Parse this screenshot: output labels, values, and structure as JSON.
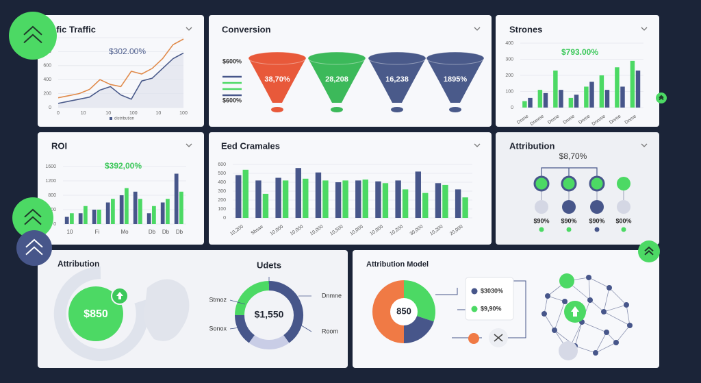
{
  "chart_data": [
    {
      "type": "line",
      "title": "afic Traffic",
      "annotation": "$302.00%",
      "legend": "distribution",
      "x": [
        0,
        1,
        2,
        3,
        4,
        5,
        6,
        7,
        8,
        9,
        10,
        11,
        12
      ],
      "xlim": [
        0,
        12
      ],
      "xticks": [
        {
          "value": 0,
          "label": "0"
        },
        {
          "value": 2.4,
          "label": "10"
        },
        {
          "value": 4.8,
          "label": "10"
        },
        {
          "value": 7.2,
          "label": "100"
        },
        {
          "value": 9.6,
          "label": "10"
        },
        {
          "value": 12,
          "label": "100"
        }
      ],
      "series": [
        {
          "color": "#e08a4a",
          "values": [
            140,
            170,
            200,
            260,
            400,
            330,
            300,
            520,
            480,
            560,
            700,
            900,
            980
          ]
        },
        {
          "color": "#4a5a8a",
          "values": [
            60,
            90,
            120,
            150,
            250,
            300,
            180,
            120,
            380,
            420,
            560,
            700,
            780
          ]
        }
      ],
      "ylim": [
        0,
        1000
      ],
      "yticks": [
        0,
        200,
        400,
        600,
        800,
        1000
      ]
    },
    {
      "type": "funnel",
      "title": "Conversion",
      "legend_labels": [
        "$600%",
        "$600%"
      ],
      "labels": [
        "38,70%",
        "28,208",
        "16,238",
        "1895%"
      ],
      "colors": [
        "#e8593a",
        "#3cb95a",
        "#4a5a8a",
        "#4a5a8a"
      ]
    },
    {
      "type": "bar",
      "title": "Strones",
      "annotation": "$793.00%",
      "categories": [
        "Dnme",
        "Dnnme",
        "Dnme",
        "Dnme",
        "Dnme",
        "Dnnme",
        "Dnme",
        "Dnme"
      ],
      "series": [
        {
          "color": "#4cd964",
          "values": [
            40,
            110,
            230,
            60,
            130,
            200,
            250,
            290
          ]
        },
        {
          "color": "#47568a",
          "values": [
            60,
            90,
            110,
            80,
            160,
            110,
            130,
            230
          ]
        }
      ],
      "ylim": [
        0,
        400
      ],
      "yticks": [
        0,
        100,
        200,
        300,
        400
      ]
    },
    {
      "type": "bar",
      "title": "ROI",
      "annotation": "$392,00%",
      "categories": [
        "10",
        null,
        "Fi",
        null,
        "Mo",
        null,
        "Db",
        "Db",
        "Db"
      ],
      "series": [
        {
          "color": "#47568a",
          "values": [
            200,
            300,
            400,
            600,
            800,
            900,
            300,
            600,
            1400
          ]
        },
        {
          "color": "#4cd964",
          "values": [
            300,
            500,
            400,
            700,
            1000,
            700,
            500,
            700,
            900
          ]
        }
      ],
      "ylim": [
        0,
        1600
      ],
      "yticks": [
        0,
        400,
        800,
        1200,
        1600
      ]
    },
    {
      "type": "bar",
      "title": "Eed Cramales",
      "categories": [
        "10,200",
        "Sbsae",
        "10,000",
        "10,000",
        "10,000",
        "10,500",
        "10,000",
        "10,000",
        "10,200",
        "30,000",
        "10,200",
        "20,000"
      ],
      "series": [
        {
          "color": "#47568a",
          "values": [
            480,
            420,
            450,
            560,
            510,
            400,
            420,
            410,
            420,
            520,
            390,
            320
          ]
        },
        {
          "color": "#4cd964",
          "values": [
            540,
            270,
            420,
            440,
            420,
            420,
            430,
            390,
            320,
            280,
            370,
            230
          ]
        }
      ],
      "ylim": [
        0,
        600
      ],
      "yticks": [
        0,
        100,
        200,
        300,
        400,
        500,
        600
      ]
    },
    {
      "type": "tree",
      "title": "Attribution",
      "annotation": "$8,70%",
      "labels": [
        "$90%",
        "$90%",
        "$90%",
        "$00%"
      ]
    },
    {
      "type": "gauge",
      "title": "Attribution",
      "label": "$850"
    },
    {
      "type": "donut",
      "title": "Udets",
      "center_label": "$1,550",
      "categories": [
        "Dnmne",
        "Room",
        "Sonox",
        "Stmoz"
      ],
      "values": [
        40,
        20,
        15,
        25
      ],
      "colors": [
        "#47568a",
        "#c9cde6",
        "#47568a",
        "#4cd964"
      ]
    },
    {
      "type": "pie",
      "title": "Attribution Model",
      "center_label": "850",
      "values": [
        30,
        20,
        50
      ],
      "colors": [
        "#4cd964",
        "#47568a",
        "#f07a45"
      ],
      "legend": [
        {
          "label": "$3030%",
          "color": "#47568a"
        },
        {
          "label": "$9,90%",
          "color": "#4cd964"
        }
      ]
    }
  ]
}
